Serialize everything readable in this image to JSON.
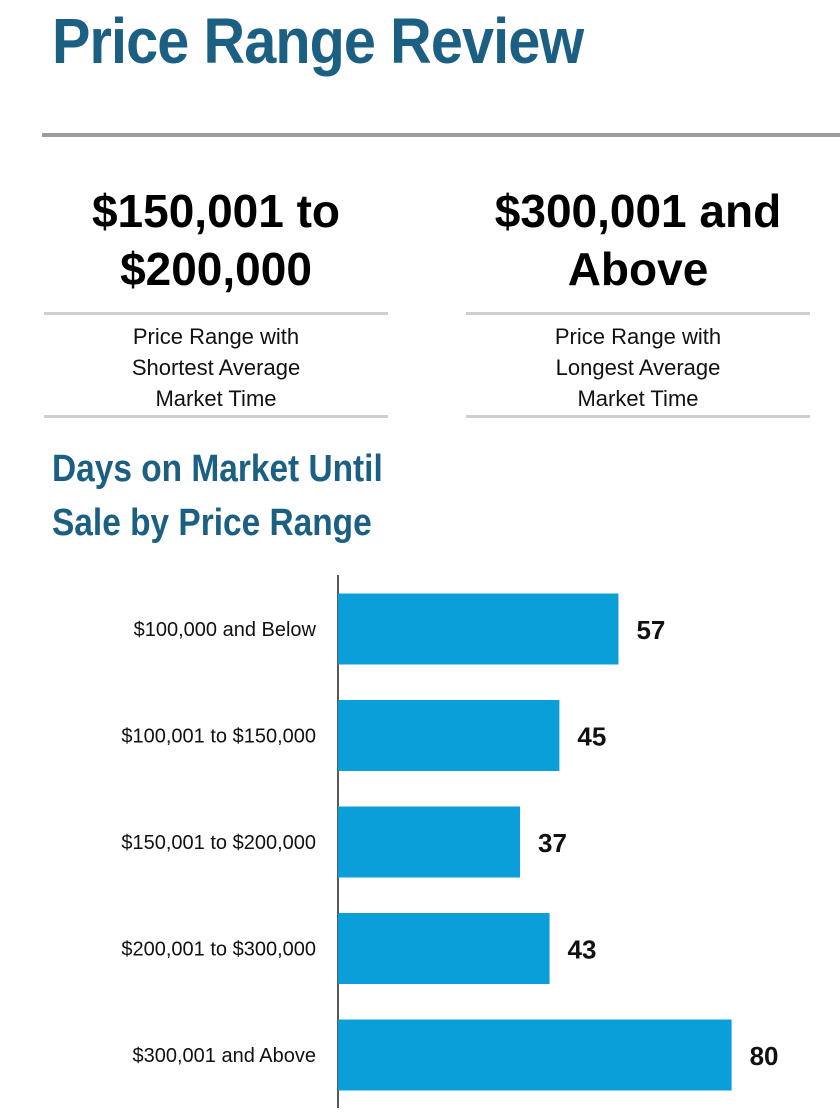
{
  "title": "Price Range Review",
  "highlights": [
    {
      "value_line1": "$150,001 to",
      "value_line2": "$200,000",
      "desc_line1": "Price Range with",
      "desc_line2": "Shortest Average",
      "desc_line3": "Market Time"
    },
    {
      "value_line1": "$300,001 and",
      "value_line2": "Above",
      "desc_line1": "Price Range with",
      "desc_line2": "Longest Average",
      "desc_line3": "Market Time"
    }
  ],
  "chart_data": {
    "type": "bar",
    "orientation": "horizontal",
    "title": "Days on Market Until\nSale by Price Range",
    "categories": [
      "$100,000 and Below",
      "$100,001 to $150,000",
      "$150,001 to $200,000",
      "$200,001 to $300,000",
      "$300,001 and Above"
    ],
    "values": [
      57,
      45,
      37,
      43,
      80
    ],
    "bar_color": "#0a9fd8",
    "grid": false,
    "legend": "none"
  }
}
